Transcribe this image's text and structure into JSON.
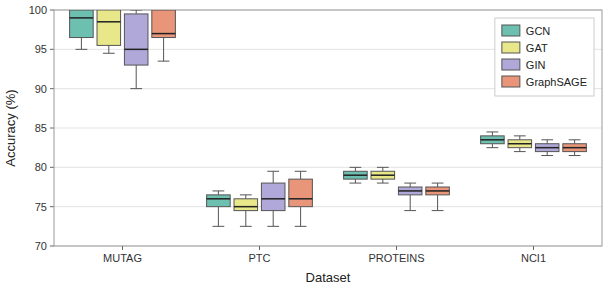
{
  "chart_data": {
    "type": "box",
    "x_label": "Dataset",
    "y_label": "Accuracy (%)",
    "categories": [
      "MUTAG",
      "PTC",
      "PROTEINS",
      "NCI1"
    ],
    "series": [
      {
        "name": "GCN",
        "color": "#6dbfb0",
        "values": [
          {
            "whislo": 95.0,
            "q1": 96.5,
            "med": 99.0,
            "q3": 100.0,
            "whishi": 100.0
          },
          {
            "whislo": 72.5,
            "q1": 75.0,
            "med": 76.0,
            "q3": 76.5,
            "whishi": 77.0
          },
          {
            "whislo": 78.0,
            "q1": 78.5,
            "med": 79.0,
            "q3": 79.5,
            "whishi": 80.0
          },
          {
            "whislo": 82.5,
            "q1": 83.0,
            "med": 83.5,
            "q3": 84.0,
            "whishi": 84.5
          }
        ]
      },
      {
        "name": "GAT",
        "color": "#e8e88a",
        "values": [
          {
            "whislo": 94.5,
            "q1": 95.5,
            "med": 98.5,
            "q3": 100.0,
            "whishi": 100.0
          },
          {
            "whislo": 72.5,
            "q1": 74.5,
            "med": 75.0,
            "q3": 76.0,
            "whishi": 76.5
          },
          {
            "whislo": 78.0,
            "q1": 78.5,
            "med": 79.0,
            "q3": 79.5,
            "whishi": 80.0
          },
          {
            "whislo": 82.0,
            "q1": 82.5,
            "med": 83.0,
            "q3": 83.5,
            "whishi": 84.0
          }
        ]
      },
      {
        "name": "GIN",
        "color": "#b0a8d8",
        "values": [
          {
            "whislo": 90.0,
            "q1": 93.0,
            "med": 95.0,
            "q3": 99.5,
            "whishi": 100.0
          },
          {
            "whislo": 72.5,
            "q1": 74.5,
            "med": 76.0,
            "q3": 78.0,
            "whishi": 79.5
          },
          {
            "whislo": 74.5,
            "q1": 76.5,
            "med": 77.0,
            "q3": 77.5,
            "whishi": 78.0
          },
          {
            "whislo": 81.5,
            "q1": 82.0,
            "med": 82.5,
            "q3": 83.0,
            "whishi": 83.5
          }
        ]
      },
      {
        "name": "GraphSAGE",
        "color": "#e8957a",
        "values": [
          {
            "whislo": 93.5,
            "q1": 96.5,
            "med": 97.0,
            "q3": 100.0,
            "whishi": 100.0
          },
          {
            "whislo": 72.5,
            "q1": 75.0,
            "med": 76.0,
            "q3": 78.5,
            "whishi": 79.5
          },
          {
            "whislo": 74.5,
            "q1": 76.5,
            "med": 77.0,
            "q3": 77.5,
            "whishi": 78.0
          },
          {
            "whislo": 81.5,
            "q1": 82.0,
            "med": 82.5,
            "q3": 83.0,
            "whishi": 83.5
          }
        ]
      }
    ],
    "ylim": [
      70,
      100
    ],
    "yticks": [
      70,
      75,
      80,
      85,
      90,
      95,
      100
    ],
    "grid": true,
    "legend": "upper right"
  }
}
